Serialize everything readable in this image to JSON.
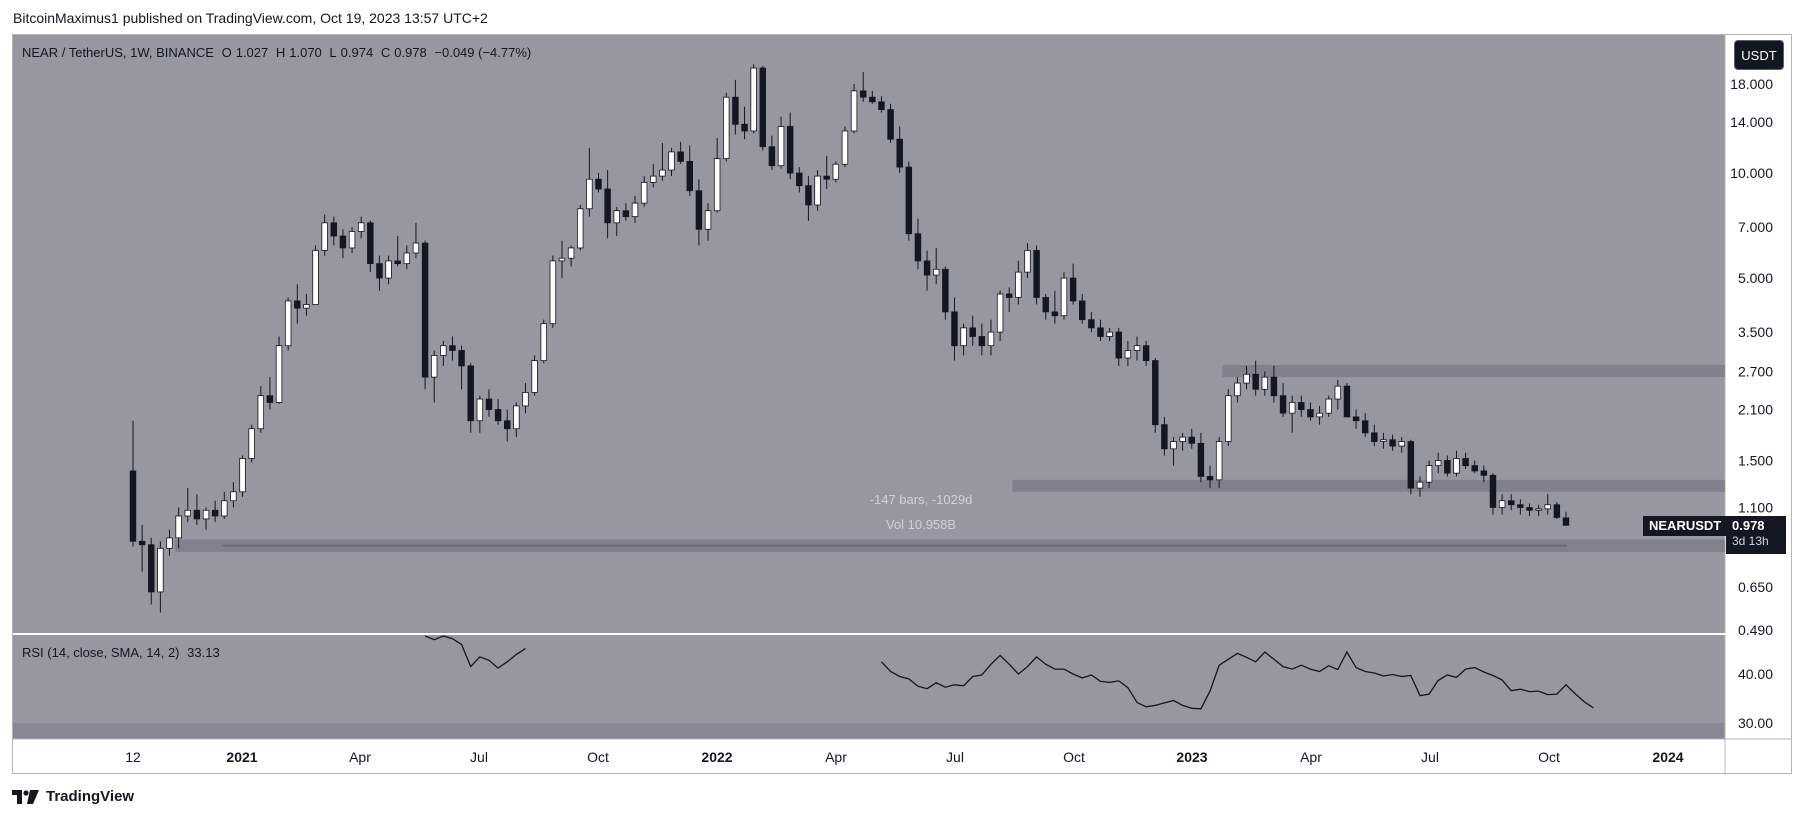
{
  "header": {
    "publisher_text": "BitcoinMaximus1 published on TradingView.com, Oct 19, 2023 13:57 UTC+2"
  },
  "legend": {
    "symbol": "NEAR / TetherUS, 1W, BINANCE",
    "open_label": "O",
    "open": "1.027",
    "high_label": "H",
    "high": "1.070",
    "low_label": "L",
    "low": "0.974",
    "close_label": "C",
    "close": "0.978",
    "change": "−0.049 (−4.77%)"
  },
  "currency_button": "USDT",
  "price_tag": {
    "symbol": "NEARUSDT",
    "price": "0.978",
    "countdown": "3d 13h"
  },
  "measure": {
    "bars": "-147 bars, -1029d",
    "volume": "Vol 10.958B"
  },
  "rsi_legend": {
    "label": "RSI (14, close, SMA, 14, 2)",
    "value": "33.13"
  },
  "footer": {
    "brand": "TradingView"
  },
  "colors": {
    "pane_bg": "#9598a1",
    "bull_candle": "#ffffff",
    "bear_candle": "#131722",
    "zone": "#787b86",
    "rsi_line": "#131722",
    "rsi_band": "#868993"
  },
  "chart_data": {
    "type": "candlestick",
    "scale": "log",
    "price_axis_labels": [
      "18.000",
      "14.000",
      "10.000",
      "7.000",
      "5.000",
      "3.500",
      "2.700",
      "2.100",
      "1.500",
      "1.100",
      "0.650",
      "0.490"
    ],
    "time_axis_labels": [
      "12",
      "2021",
      "Apr",
      "Jul",
      "Oct",
      "2022",
      "Apr",
      "Jul",
      "Oct",
      "2023",
      "Apr",
      "Jul",
      "Oct",
      "2024"
    ],
    "rsi_axis_labels": [
      "40.00",
      "30.00"
    ],
    "horizontal_zones": [
      {
        "from": 0.82,
        "to": 0.89
      },
      {
        "from": 1.22,
        "to": 1.32
      },
      {
        "from": 2.6,
        "to": 2.82
      }
    ],
    "candles": [
      {
        "o": 1.4,
        "h": 1.95,
        "l": 0.85,
        "c": 0.88
      },
      {
        "o": 0.88,
        "h": 0.98,
        "l": 0.72,
        "c": 0.86
      },
      {
        "o": 0.86,
        "h": 0.9,
        "l": 0.58,
        "c": 0.63
      },
      {
        "o": 0.63,
        "h": 0.88,
        "l": 0.55,
        "c": 0.84
      },
      {
        "o": 0.84,
        "h": 0.95,
        "l": 0.8,
        "c": 0.9
      },
      {
        "o": 0.9,
        "h": 1.1,
        "l": 0.84,
        "c": 1.04
      },
      {
        "o": 1.04,
        "h": 1.25,
        "l": 1.0,
        "c": 1.08
      },
      {
        "o": 1.08,
        "h": 1.2,
        "l": 0.98,
        "c": 1.02
      },
      {
        "o": 1.02,
        "h": 1.1,
        "l": 0.95,
        "c": 1.08
      },
      {
        "o": 1.08,
        "h": 1.15,
        "l": 1.0,
        "c": 1.04
      },
      {
        "o": 1.04,
        "h": 1.22,
        "l": 1.02,
        "c": 1.15
      },
      {
        "o": 1.15,
        "h": 1.3,
        "l": 1.1,
        "c": 1.22
      },
      {
        "o": 1.22,
        "h": 1.55,
        "l": 1.18,
        "c": 1.52
      },
      {
        "o": 1.52,
        "h": 1.9,
        "l": 1.48,
        "c": 1.85
      },
      {
        "o": 1.85,
        "h": 2.45,
        "l": 1.8,
        "c": 2.3
      },
      {
        "o": 2.3,
        "h": 2.6,
        "l": 2.1,
        "c": 2.2
      },
      {
        "o": 2.2,
        "h": 3.4,
        "l": 2.18,
        "c": 3.2
      },
      {
        "o": 3.2,
        "h": 4.4,
        "l": 3.1,
        "c": 4.3
      },
      {
        "o": 4.3,
        "h": 4.8,
        "l": 3.7,
        "c": 4.1
      },
      {
        "o": 4.1,
        "h": 4.5,
        "l": 3.9,
        "c": 4.2
      },
      {
        "o": 4.2,
        "h": 6.2,
        "l": 4.2,
        "c": 6.0
      },
      {
        "o": 6.0,
        "h": 7.6,
        "l": 5.8,
        "c": 7.2
      },
      {
        "o": 7.2,
        "h": 7.5,
        "l": 6.2,
        "c": 6.6
      },
      {
        "o": 6.6,
        "h": 6.9,
        "l": 5.7,
        "c": 6.1
      },
      {
        "o": 6.1,
        "h": 7.0,
        "l": 5.9,
        "c": 6.8
      },
      {
        "o": 6.8,
        "h": 7.5,
        "l": 6.5,
        "c": 7.2
      },
      {
        "o": 7.2,
        "h": 7.3,
        "l": 5.2,
        "c": 5.5
      },
      {
        "o": 5.5,
        "h": 5.8,
        "l": 4.6,
        "c": 5.0
      },
      {
        "o": 5.0,
        "h": 5.8,
        "l": 4.8,
        "c": 5.6
      },
      {
        "o": 5.6,
        "h": 6.6,
        "l": 5.4,
        "c": 5.5
      },
      {
        "o": 5.5,
        "h": 6.2,
        "l": 5.3,
        "c": 5.9
      },
      {
        "o": 5.9,
        "h": 7.2,
        "l": 5.7,
        "c": 6.3
      },
      {
        "o": 6.3,
        "h": 6.4,
        "l": 2.4,
        "c": 2.6
      },
      {
        "o": 2.6,
        "h": 3.1,
        "l": 2.2,
        "c": 3.0
      },
      {
        "o": 3.0,
        "h": 3.3,
        "l": 2.8,
        "c": 3.2
      },
      {
        "o": 3.2,
        "h": 3.4,
        "l": 2.9,
        "c": 3.1
      },
      {
        "o": 3.1,
        "h": 3.2,
        "l": 2.4,
        "c": 2.8
      },
      {
        "o": 2.8,
        "h": 2.85,
        "l": 1.8,
        "c": 1.95
      },
      {
        "o": 1.95,
        "h": 2.3,
        "l": 1.8,
        "c": 2.25
      },
      {
        "o": 2.25,
        "h": 2.4,
        "l": 2.0,
        "c": 2.1
      },
      {
        "o": 2.1,
        "h": 2.25,
        "l": 1.9,
        "c": 1.95
      },
      {
        "o": 1.95,
        "h": 2.1,
        "l": 1.7,
        "c": 1.85
      },
      {
        "o": 1.85,
        "h": 2.2,
        "l": 1.75,
        "c": 2.15
      },
      {
        "o": 2.15,
        "h": 2.5,
        "l": 2.05,
        "c": 2.35
      },
      {
        "o": 2.35,
        "h": 3.0,
        "l": 2.3,
        "c": 2.9
      },
      {
        "o": 2.9,
        "h": 3.8,
        "l": 2.85,
        "c": 3.7
      },
      {
        "o": 3.7,
        "h": 5.8,
        "l": 3.6,
        "c": 5.6
      },
      {
        "o": 5.6,
        "h": 6.4,
        "l": 5.0,
        "c": 5.7
      },
      {
        "o": 5.7,
        "h": 6.2,
        "l": 5.4,
        "c": 6.1
      },
      {
        "o": 6.1,
        "h": 8.1,
        "l": 6.0,
        "c": 7.9
      },
      {
        "o": 7.9,
        "h": 11.8,
        "l": 7.5,
        "c": 9.6
      },
      {
        "o": 9.6,
        "h": 10.0,
        "l": 8.8,
        "c": 9.0
      },
      {
        "o": 9.0,
        "h": 10.2,
        "l": 6.5,
        "c": 7.2
      },
      {
        "o": 7.2,
        "h": 8.0,
        "l": 6.6,
        "c": 7.8
      },
      {
        "o": 7.8,
        "h": 8.2,
        "l": 7.3,
        "c": 7.5
      },
      {
        "o": 7.5,
        "h": 8.6,
        "l": 7.2,
        "c": 8.2
      },
      {
        "o": 8.2,
        "h": 9.8,
        "l": 8.0,
        "c": 9.4
      },
      {
        "o": 9.4,
        "h": 10.6,
        "l": 9.1,
        "c": 9.8
      },
      {
        "o": 9.8,
        "h": 12.2,
        "l": 9.5,
        "c": 10.2
      },
      {
        "o": 10.2,
        "h": 11.8,
        "l": 9.8,
        "c": 11.5
      },
      {
        "o": 11.5,
        "h": 12.3,
        "l": 10.6,
        "c": 10.8
      },
      {
        "o": 10.8,
        "h": 12.0,
        "l": 8.6,
        "c": 8.9
      },
      {
        "o": 8.9,
        "h": 9.6,
        "l": 6.2,
        "c": 6.9
      },
      {
        "o": 6.9,
        "h": 8.2,
        "l": 6.4,
        "c": 7.8
      },
      {
        "o": 7.8,
        "h": 12.6,
        "l": 7.7,
        "c": 11.0
      },
      {
        "o": 11.0,
        "h": 17.0,
        "l": 10.8,
        "c": 16.5
      },
      {
        "o": 16.5,
        "h": 18.5,
        "l": 12.9,
        "c": 13.8
      },
      {
        "o": 13.8,
        "h": 15.5,
        "l": 12.5,
        "c": 13.2
      },
      {
        "o": 13.2,
        "h": 20.5,
        "l": 13.0,
        "c": 20.0
      },
      {
        "o": 20.0,
        "h": 20.3,
        "l": 11.6,
        "c": 11.9
      },
      {
        "o": 11.9,
        "h": 12.8,
        "l": 10.2,
        "c": 10.5
      },
      {
        "o": 10.5,
        "h": 14.5,
        "l": 10.3,
        "c": 13.6
      },
      {
        "o": 13.6,
        "h": 14.9,
        "l": 9.6,
        "c": 10.0
      },
      {
        "o": 10.0,
        "h": 10.4,
        "l": 8.8,
        "c": 9.2
      },
      {
        "o": 9.2,
        "h": 9.8,
        "l": 7.3,
        "c": 8.1
      },
      {
        "o": 8.1,
        "h": 10.2,
        "l": 7.8,
        "c": 9.8
      },
      {
        "o": 9.8,
        "h": 11.2,
        "l": 9.0,
        "c": 9.6
      },
      {
        "o": 9.6,
        "h": 10.8,
        "l": 9.4,
        "c": 10.6
      },
      {
        "o": 10.6,
        "h": 13.6,
        "l": 10.4,
        "c": 13.2
      },
      {
        "o": 13.2,
        "h": 18.0,
        "l": 13.0,
        "c": 17.2
      },
      {
        "o": 17.2,
        "h": 19.5,
        "l": 16.0,
        "c": 16.5
      },
      {
        "o": 16.5,
        "h": 17.2,
        "l": 15.8,
        "c": 16.0
      },
      {
        "o": 16.0,
        "h": 16.6,
        "l": 14.9,
        "c": 15.2
      },
      {
        "o": 15.2,
        "h": 15.8,
        "l": 12.2,
        "c": 12.5
      },
      {
        "o": 12.5,
        "h": 13.6,
        "l": 10.0,
        "c": 10.4
      },
      {
        "o": 10.4,
        "h": 10.8,
        "l": 6.4,
        "c": 6.7
      },
      {
        "o": 6.7,
        "h": 7.4,
        "l": 5.3,
        "c": 5.6
      },
      {
        "o": 5.6,
        "h": 6.0,
        "l": 4.6,
        "c": 5.1
      },
      {
        "o": 5.1,
        "h": 6.1,
        "l": 4.8,
        "c": 5.3
      },
      {
        "o": 5.3,
        "h": 5.4,
        "l": 3.8,
        "c": 4.0
      },
      {
        "o": 4.0,
        "h": 4.4,
        "l": 2.9,
        "c": 3.2
      },
      {
        "o": 3.2,
        "h": 3.7,
        "l": 3.0,
        "c": 3.6
      },
      {
        "o": 3.6,
        "h": 3.9,
        "l": 3.2,
        "c": 3.4
      },
      {
        "o": 3.4,
        "h": 3.7,
        "l": 3.0,
        "c": 3.2
      },
      {
        "o": 3.2,
        "h": 3.8,
        "l": 3.0,
        "c": 3.5
      },
      {
        "o": 3.5,
        "h": 4.6,
        "l": 3.3,
        "c": 4.5
      },
      {
        "o": 4.5,
        "h": 4.7,
        "l": 4.0,
        "c": 4.4
      },
      {
        "o": 4.4,
        "h": 5.6,
        "l": 4.2,
        "c": 5.2
      },
      {
        "o": 5.2,
        "h": 6.3,
        "l": 5.0,
        "c": 6.0
      },
      {
        "o": 6.0,
        "h": 6.2,
        "l": 4.2,
        "c": 4.4
      },
      {
        "o": 4.4,
        "h": 4.5,
        "l": 3.8,
        "c": 4.0
      },
      {
        "o": 4.0,
        "h": 4.6,
        "l": 3.7,
        "c": 3.9
      },
      {
        "o": 3.9,
        "h": 5.2,
        "l": 3.8,
        "c": 5.0
      },
      {
        "o": 5.0,
        "h": 5.5,
        "l": 4.2,
        "c": 4.3
      },
      {
        "o": 4.3,
        "h": 4.5,
        "l": 3.7,
        "c": 3.8
      },
      {
        "o": 3.8,
        "h": 4.0,
        "l": 3.5,
        "c": 3.6
      },
      {
        "o": 3.6,
        "h": 3.8,
        "l": 3.3,
        "c": 3.4
      },
      {
        "o": 3.4,
        "h": 3.6,
        "l": 3.3,
        "c": 3.5
      },
      {
        "o": 3.5,
        "h": 3.6,
        "l": 2.8,
        "c": 2.95
      },
      {
        "o": 2.95,
        "h": 3.3,
        "l": 2.8,
        "c": 3.1
      },
      {
        "o": 3.1,
        "h": 3.4,
        "l": 2.9,
        "c": 3.2
      },
      {
        "o": 3.2,
        "h": 3.3,
        "l": 2.8,
        "c": 2.9
      },
      {
        "o": 2.9,
        "h": 2.95,
        "l": 1.8,
        "c": 1.9
      },
      {
        "o": 1.9,
        "h": 2.0,
        "l": 1.55,
        "c": 1.62
      },
      {
        "o": 1.62,
        "h": 1.75,
        "l": 1.45,
        "c": 1.7
      },
      {
        "o": 1.7,
        "h": 1.8,
        "l": 1.6,
        "c": 1.75
      },
      {
        "o": 1.75,
        "h": 1.85,
        "l": 1.62,
        "c": 1.68
      },
      {
        "o": 1.68,
        "h": 1.8,
        "l": 1.3,
        "c": 1.35
      },
      {
        "o": 1.35,
        "h": 1.45,
        "l": 1.25,
        "c": 1.32
      },
      {
        "o": 1.32,
        "h": 1.75,
        "l": 1.25,
        "c": 1.7
      },
      {
        "o": 1.7,
        "h": 2.4,
        "l": 1.65,
        "c": 2.3
      },
      {
        "o": 2.3,
        "h": 2.6,
        "l": 2.2,
        "c": 2.5
      },
      {
        "o": 2.5,
        "h": 2.8,
        "l": 2.4,
        "c": 2.65
      },
      {
        "o": 2.65,
        "h": 2.9,
        "l": 2.3,
        "c": 2.4
      },
      {
        "o": 2.4,
        "h": 2.7,
        "l": 2.3,
        "c": 2.6
      },
      {
        "o": 2.6,
        "h": 2.8,
        "l": 2.2,
        "c": 2.3
      },
      {
        "o": 2.3,
        "h": 2.5,
        "l": 2.0,
        "c": 2.05
      },
      {
        "o": 2.05,
        "h": 2.3,
        "l": 1.8,
        "c": 2.2
      },
      {
        "o": 2.2,
        "h": 2.3,
        "l": 2.0,
        "c": 2.1
      },
      {
        "o": 2.1,
        "h": 2.2,
        "l": 1.95,
        "c": 2.0
      },
      {
        "o": 2.0,
        "h": 2.15,
        "l": 1.9,
        "c": 2.05
      },
      {
        "o": 2.05,
        "h": 2.3,
        "l": 2.0,
        "c": 2.25
      },
      {
        "o": 2.25,
        "h": 2.55,
        "l": 2.1,
        "c": 2.45
      },
      {
        "o": 2.45,
        "h": 2.5,
        "l": 2.0,
        "c": 2.0
      },
      {
        "o": 2.0,
        "h": 2.1,
        "l": 1.85,
        "c": 1.95
      },
      {
        "o": 1.95,
        "h": 2.05,
        "l": 1.75,
        "c": 1.8
      },
      {
        "o": 1.8,
        "h": 1.9,
        "l": 1.65,
        "c": 1.7
      },
      {
        "o": 1.7,
        "h": 1.8,
        "l": 1.62,
        "c": 1.72
      },
      {
        "o": 1.72,
        "h": 1.78,
        "l": 1.6,
        "c": 1.65
      },
      {
        "o": 1.65,
        "h": 1.75,
        "l": 1.58,
        "c": 1.7
      },
      {
        "o": 1.7,
        "h": 1.72,
        "l": 1.2,
        "c": 1.25
      },
      {
        "o": 1.25,
        "h": 1.35,
        "l": 1.18,
        "c": 1.3
      },
      {
        "o": 1.3,
        "h": 1.5,
        "l": 1.25,
        "c": 1.45
      },
      {
        "o": 1.45,
        "h": 1.58,
        "l": 1.38,
        "c": 1.5
      },
      {
        "o": 1.5,
        "h": 1.55,
        "l": 1.35,
        "c": 1.38
      },
      {
        "o": 1.38,
        "h": 1.6,
        "l": 1.35,
        "c": 1.52
      },
      {
        "o": 1.52,
        "h": 1.58,
        "l": 1.42,
        "c": 1.45
      },
      {
        "o": 1.45,
        "h": 1.5,
        "l": 1.38,
        "c": 1.4
      },
      {
        "o": 1.4,
        "h": 1.45,
        "l": 1.3,
        "c": 1.36
      },
      {
        "o": 1.36,
        "h": 1.38,
        "l": 1.05,
        "c": 1.1
      },
      {
        "o": 1.1,
        "h": 1.2,
        "l": 1.05,
        "c": 1.15
      },
      {
        "o": 1.15,
        "h": 1.2,
        "l": 1.08,
        "c": 1.12
      },
      {
        "o": 1.12,
        "h": 1.16,
        "l": 1.05,
        "c": 1.1
      },
      {
        "o": 1.1,
        "h": 1.13,
        "l": 1.04,
        "c": 1.08
      },
      {
        "o": 1.08,
        "h": 1.12,
        "l": 1.04,
        "c": 1.09
      },
      {
        "o": 1.09,
        "h": 1.2,
        "l": 1.05,
        "c": 1.12
      },
      {
        "o": 1.12,
        "h": 1.14,
        "l": 1.02,
        "c": 1.03
      },
      {
        "o": 1.027,
        "h": 1.07,
        "l": 0.974,
        "c": 0.978
      }
    ],
    "rsi": [
      null,
      null,
      null,
      null,
      null,
      null,
      null,
      null,
      null,
      null,
      null,
      null,
      null,
      null,
      null,
      null,
      null,
      null,
      null,
      null,
      null,
      null,
      null,
      null,
      null,
      null,
      null,
      null,
      null,
      null,
      null,
      null,
      48.5,
      47.0,
      48.0,
      47.2,
      46.0,
      41.5,
      43.5,
      42.8,
      41.2,
      42.5,
      44.0,
      45.2,
      null,
      null,
      null,
      null,
      null,
      null,
      null,
      null,
      null,
      null,
      null,
      null,
      null,
      null,
      null,
      null,
      null,
      null,
      null,
      null,
      null,
      null,
      null,
      null,
      null,
      null,
      null,
      null,
      null,
      null,
      null,
      null,
      null,
      null,
      null,
      null,
      null,
      null,
      42.5,
      40.5,
      39.5,
      39.0,
      37.5,
      37.0,
      38.2,
      37.3,
      37.8,
      37.6,
      39.5,
      39.8,
      42.0,
      43.8,
      42.0,
      40.0,
      41.5,
      43.5,
      42.0,
      41.0,
      41.0,
      40.0,
      39.2,
      39.8,
      38.5,
      38.3,
      38.6,
      37.2,
      34.2,
      33.3,
      33.6,
      34.1,
      34.6,
      33.6,
      33.0,
      32.9,
      36.5,
      41.8,
      43.0,
      44.2,
      43.4,
      42.5,
      44.5,
      43.0,
      41.5,
      41.0,
      41.8,
      41.0,
      40.5,
      41.7,
      40.9,
      44.5,
      41.3,
      40.5,
      40.2,
      39.6,
      39.9,
      39.5,
      39.7,
      35.6,
      35.9,
      38.7,
      39.8,
      39.3,
      41.0,
      41.3,
      40.4,
      39.7,
      38.8,
      36.6,
      36.9,
      36.4,
      36.5,
      35.8,
      35.9,
      37.8,
      36.0,
      34.3,
      33.1
    ]
  }
}
